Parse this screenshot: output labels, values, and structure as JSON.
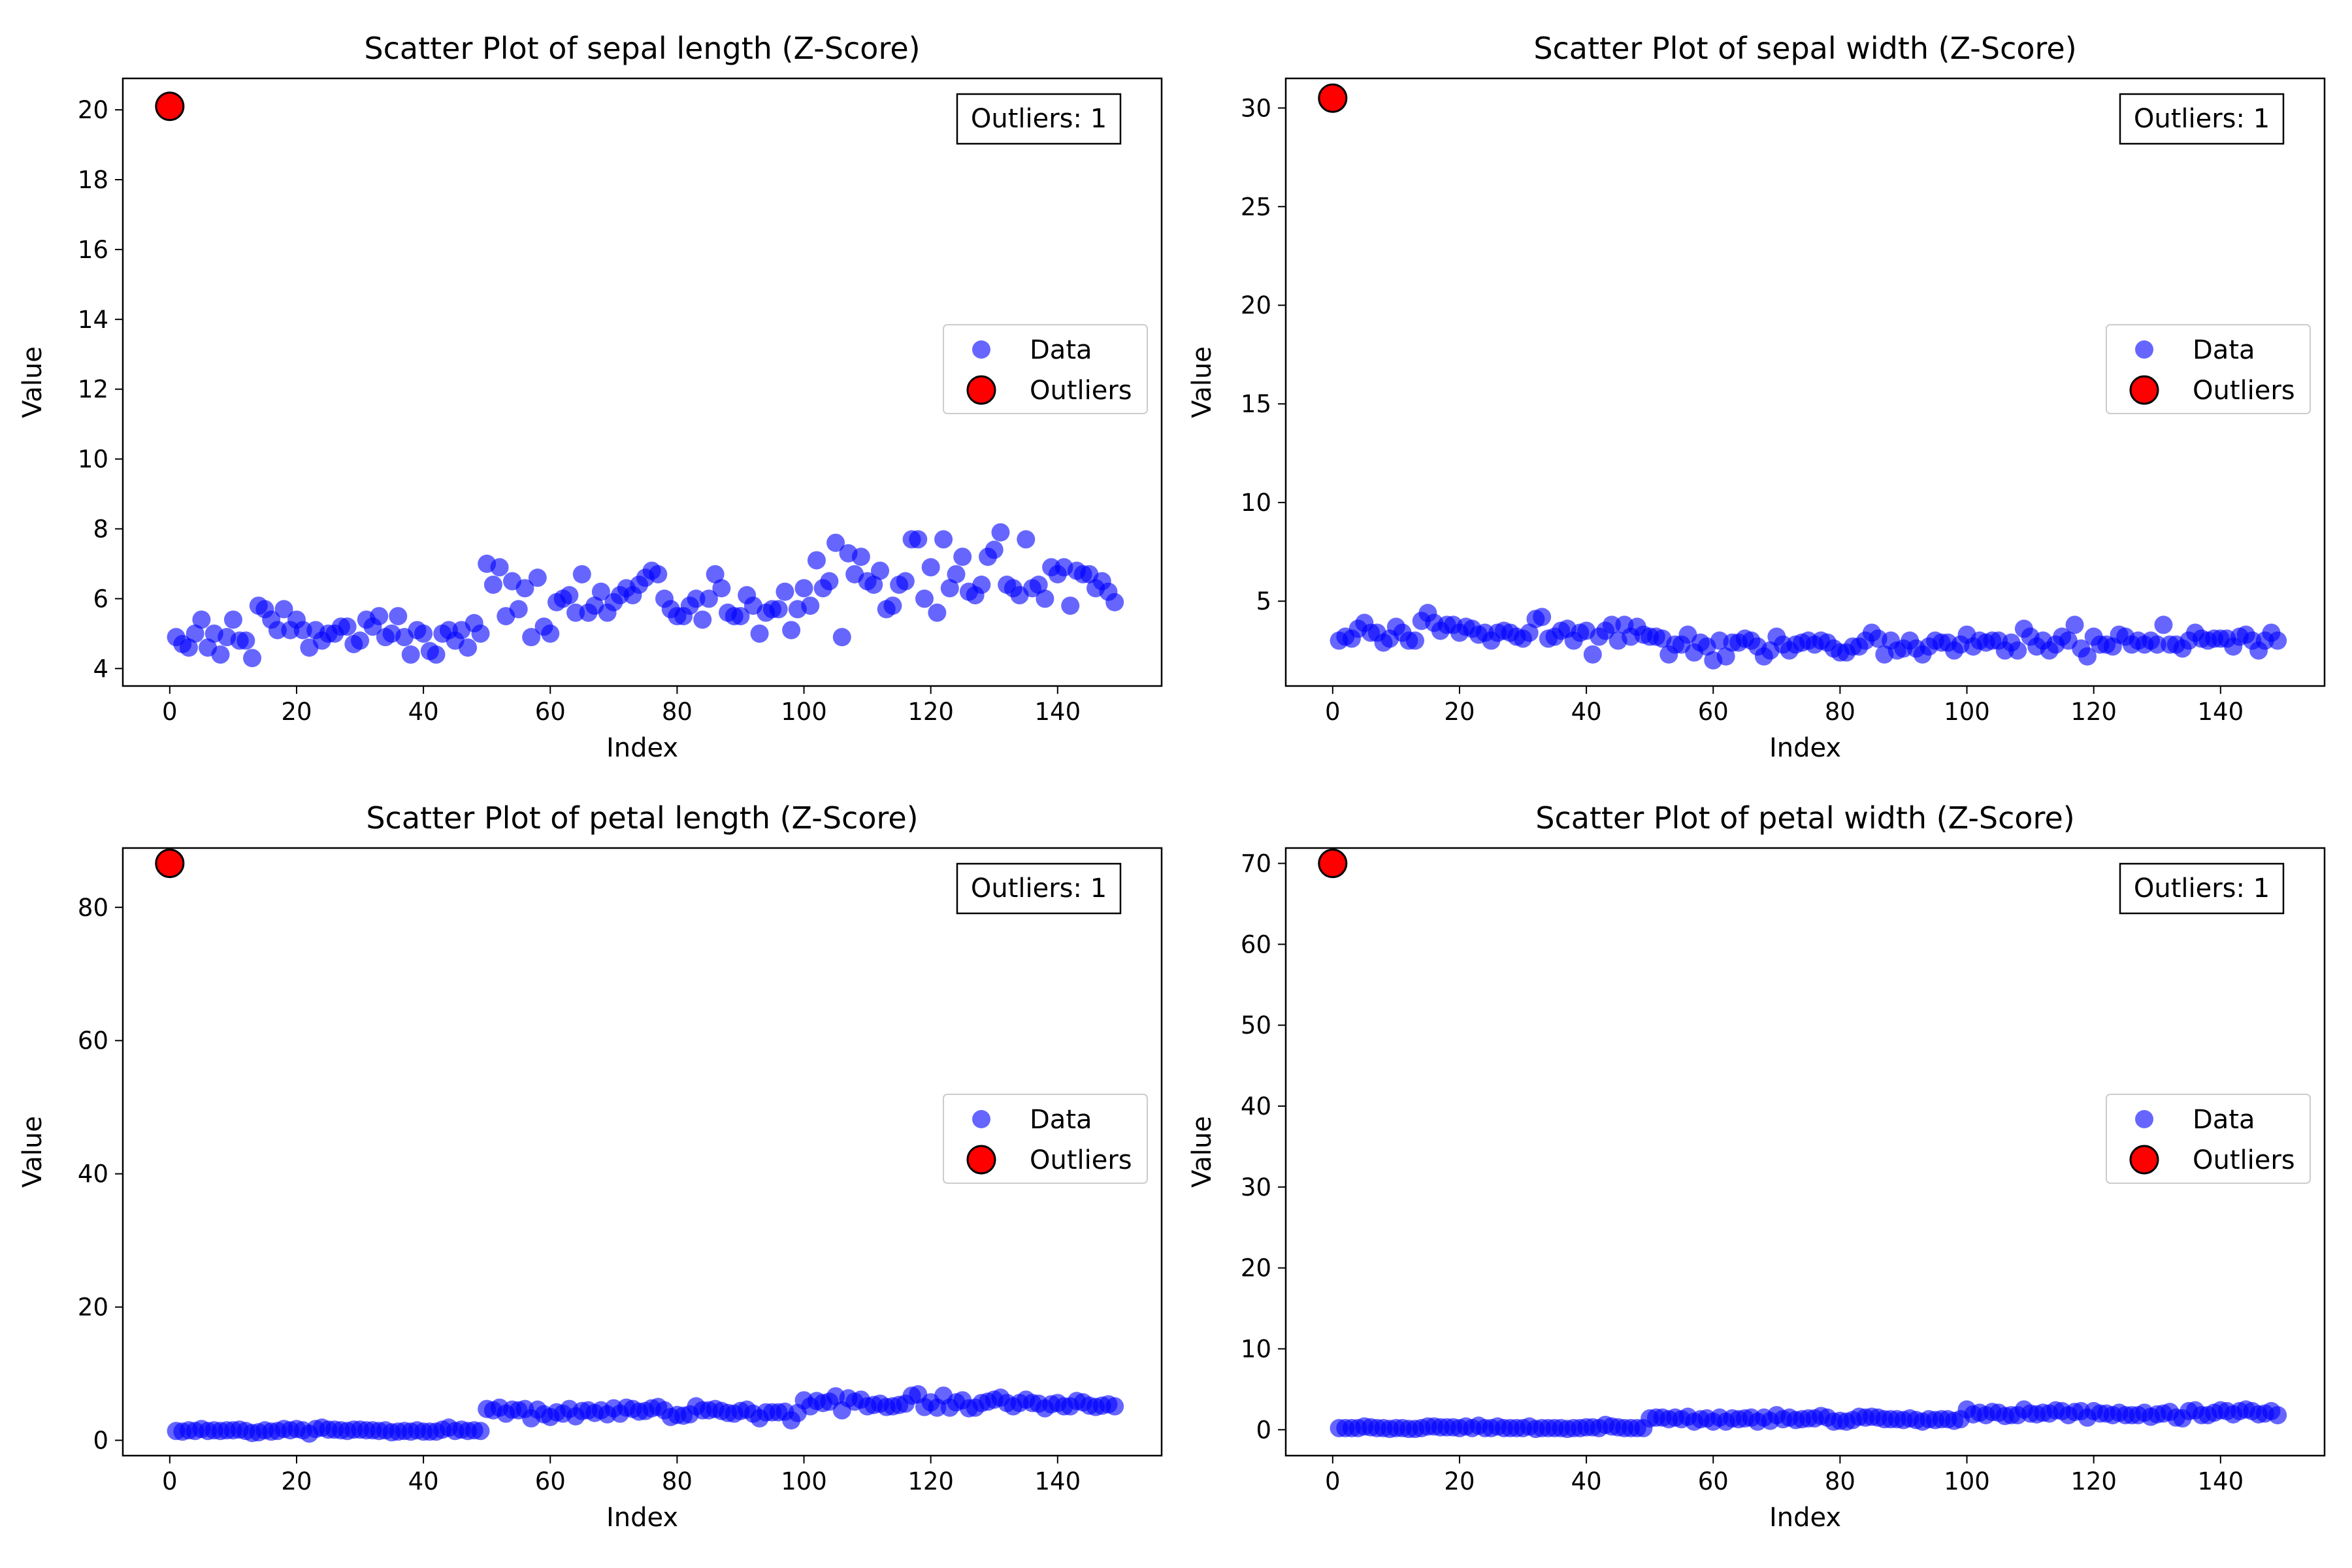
{
  "legend": {
    "data_label": "Data",
    "outlier_label": "Outliers"
  },
  "colors": {
    "data": "#0000ff",
    "outlier": "#ff0000"
  },
  "chart_data": [
    {
      "type": "scatter",
      "title": "Scatter Plot of sepal length (Z-Score)",
      "xlabel": "Index",
      "ylabel": "Value",
      "xlim": [
        -7.4,
        156.4
      ],
      "ylim": [
        3.5,
        20.9
      ],
      "xticks": [
        0,
        20,
        40,
        60,
        80,
        100,
        120,
        140
      ],
      "yticks": [
        4,
        6,
        8,
        10,
        12,
        14,
        16,
        18,
        20
      ],
      "legend_placement": "center-right",
      "outlier_box": "Outliers: 1",
      "series": [
        {
          "name": "Data",
          "x_start": 1,
          "values": [
            4.9,
            4.7,
            4.6,
            5.0,
            5.4,
            4.6,
            5.0,
            4.4,
            4.9,
            5.4,
            4.8,
            4.8,
            4.3,
            5.8,
            5.7,
            5.4,
            5.1,
            5.7,
            5.1,
            5.4,
            5.1,
            4.6,
            5.1,
            4.8,
            5.0,
            5.0,
            5.2,
            5.2,
            4.7,
            4.8,
            5.4,
            5.2,
            5.5,
            4.9,
            5.0,
            5.5,
            4.9,
            4.4,
            5.1,
            5.0,
            4.5,
            4.4,
            5.0,
            5.1,
            4.8,
            5.1,
            4.6,
            5.3,
            5.0,
            7.0,
            6.4,
            6.9,
            5.5,
            6.5,
            5.7,
            6.3,
            4.9,
            6.6,
            5.2,
            5.0,
            5.9,
            6.0,
            6.1,
            5.6,
            6.7,
            5.6,
            5.8,
            6.2,
            5.6,
            5.9,
            6.1,
            6.3,
            6.1,
            6.4,
            6.6,
            6.8,
            6.7,
            6.0,
            5.7,
            5.5,
            5.5,
            5.8,
            6.0,
            5.4,
            6.0,
            6.7,
            6.3,
            5.6,
            5.5,
            5.5,
            6.1,
            5.8,
            5.0,
            5.6,
            5.7,
            5.7,
            6.2,
            5.1,
            5.7,
            6.3,
            5.8,
            7.1,
            6.3,
            6.5,
            7.6,
            4.9,
            7.3,
            6.7,
            7.2,
            6.5,
            6.4,
            6.8,
            5.7,
            5.8,
            6.4,
            6.5,
            7.7,
            7.7,
            6.0,
            6.9,
            5.6,
            7.7,
            6.3,
            6.7,
            7.2,
            6.2,
            6.1,
            6.4,
            7.2,
            7.4,
            7.9,
            6.4,
            6.3,
            6.1,
            7.7,
            6.3,
            6.4,
            6.0,
            6.9,
            6.7,
            6.9,
            5.8,
            6.8,
            6.7,
            6.7,
            6.3,
            6.5,
            6.2,
            5.9
          ]
        },
        {
          "name": "Outliers",
          "x": [
            0
          ],
          "values": [
            20.1
          ]
        }
      ]
    },
    {
      "type": "scatter",
      "title": "Scatter Plot of sepal width (Z-Score)",
      "xlabel": "Index",
      "ylabel": "Value",
      "xlim": [
        -7.4,
        156.4
      ],
      "ylim": [
        0.7,
        31.5
      ],
      "xticks": [
        0,
        20,
        40,
        60,
        80,
        100,
        120,
        140
      ],
      "yticks": [
        5,
        10,
        15,
        20,
        25,
        30
      ],
      "legend_placement": "center-right",
      "outlier_box": "Outliers: 1",
      "series": [
        {
          "name": "Data",
          "x_start": 1,
          "values": [
            3.0,
            3.2,
            3.1,
            3.6,
            3.9,
            3.4,
            3.4,
            2.9,
            3.1,
            3.7,
            3.4,
            3.0,
            3.0,
            4.0,
            4.4,
            3.9,
            3.5,
            3.8,
            3.8,
            3.4,
            3.7,
            3.6,
            3.3,
            3.4,
            3.0,
            3.4,
            3.5,
            3.4,
            3.2,
            3.1,
            3.4,
            4.1,
            4.2,
            3.1,
            3.2,
            3.5,
            3.6,
            3.0,
            3.4,
            3.5,
            2.3,
            3.2,
            3.5,
            3.8,
            3.0,
            3.8,
            3.2,
            3.7,
            3.3,
            3.2,
            3.2,
            3.1,
            2.3,
            2.8,
            2.8,
            3.3,
            2.4,
            2.9,
            2.7,
            2.0,
            3.0,
            2.2,
            2.9,
            2.9,
            3.1,
            3.0,
            2.7,
            2.2,
            2.5,
            3.2,
            2.8,
            2.5,
            2.8,
            2.9,
            3.0,
            2.8,
            3.0,
            2.9,
            2.6,
            2.4,
            2.4,
            2.7,
            2.7,
            3.0,
            3.4,
            3.1,
            2.3,
            3.0,
            2.5,
            2.6,
            3.0,
            2.6,
            2.3,
            2.7,
            3.0,
            2.9,
            2.9,
            2.5,
            2.8,
            3.3,
            2.7,
            3.0,
            2.9,
            3.0,
            3.0,
            2.5,
            2.9,
            2.5,
            3.6,
            3.2,
            2.7,
            3.0,
            2.5,
            2.8,
            3.2,
            3.0,
            3.8,
            2.6,
            2.2,
            3.2,
            2.8,
            2.8,
            2.7,
            3.3,
            3.2,
            2.8,
            3.0,
            2.8,
            3.0,
            2.8,
            3.8,
            2.8,
            2.8,
            2.6,
            3.0,
            3.4,
            3.1,
            3.0,
            3.1,
            3.1,
            3.1,
            2.7,
            3.2,
            3.3,
            3.0,
            2.5,
            3.0,
            3.4,
            3.0
          ]
        },
        {
          "name": "Outliers",
          "x": [
            0
          ],
          "values": [
            30.5
          ]
        }
      ]
    },
    {
      "type": "scatter",
      "title": "Scatter Plot of petal length (Z-Score)",
      "xlabel": "Index",
      "ylabel": "Value",
      "xlim": [
        -7.4,
        156.4
      ],
      "ylim": [
        -2.3,
        88.9
      ],
      "xticks": [
        0,
        20,
        40,
        60,
        80,
        100,
        120,
        140
      ],
      "yticks": [
        0,
        20,
        40,
        60,
        80
      ],
      "legend_placement": "center-right",
      "outlier_box": "Outliers: 1",
      "series": [
        {
          "name": "Data",
          "x_start": 1,
          "values": [
            1.4,
            1.3,
            1.5,
            1.4,
            1.7,
            1.4,
            1.5,
            1.4,
            1.5,
            1.5,
            1.6,
            1.4,
            1.1,
            1.2,
            1.5,
            1.3,
            1.4,
            1.7,
            1.5,
            1.7,
            1.5,
            1.0,
            1.7,
            1.9,
            1.6,
            1.6,
            1.5,
            1.4,
            1.6,
            1.6,
            1.5,
            1.5,
            1.4,
            1.5,
            1.2,
            1.3,
            1.4,
            1.3,
            1.5,
            1.3,
            1.3,
            1.3,
            1.6,
            1.9,
            1.4,
            1.6,
            1.4,
            1.5,
            1.4,
            4.7,
            4.5,
            4.9,
            4.0,
            4.6,
            4.5,
            4.7,
            3.3,
            4.6,
            3.9,
            3.5,
            4.2,
            4.0,
            4.7,
            3.6,
            4.4,
            4.5,
            4.1,
            4.5,
            3.9,
            4.8,
            4.0,
            4.9,
            4.7,
            4.3,
            4.4,
            4.8,
            5.0,
            4.5,
            3.5,
            3.8,
            3.7,
            3.9,
            5.1,
            4.5,
            4.5,
            4.7,
            4.4,
            4.1,
            4.0,
            4.4,
            4.6,
            4.0,
            3.3,
            4.2,
            4.2,
            4.2,
            4.3,
            3.0,
            4.1,
            6.0,
            5.1,
            5.9,
            5.6,
            5.8,
            6.6,
            4.5,
            6.3,
            5.8,
            6.1,
            5.1,
            5.3,
            5.5,
            5.0,
            5.1,
            5.3,
            5.5,
            6.7,
            6.9,
            5.0,
            5.7,
            4.9,
            6.7,
            4.9,
            5.7,
            6.0,
            4.8,
            4.9,
            5.6,
            5.8,
            6.1,
            6.4,
            5.6,
            5.1,
            5.6,
            6.1,
            5.6,
            5.5,
            4.8,
            5.4,
            5.6,
            5.1,
            5.1,
            5.9,
            5.7,
            5.2,
            5.0,
            5.2,
            5.4,
            5.1
          ]
        },
        {
          "name": "Outliers",
          "x": [
            0
          ],
          "values": [
            86.6
          ]
        }
      ]
    },
    {
      "type": "scatter",
      "title": "Scatter Plot of petal width (Z-Score)",
      "xlabel": "Index",
      "ylabel": "Value",
      "xlim": [
        -7.4,
        156.4
      ],
      "ylim": [
        -3.2,
        71.9
      ],
      "xticks": [
        0,
        20,
        40,
        60,
        80,
        100,
        120,
        140
      ],
      "yticks": [
        0,
        10,
        20,
        30,
        40,
        50,
        60,
        70
      ],
      "legend_placement": "center-right",
      "outlier_box": "Outliers: 1",
      "series": [
        {
          "name": "Data",
          "x_start": 1,
          "values": [
            0.2,
            0.2,
            0.2,
            0.2,
            0.4,
            0.3,
            0.2,
            0.2,
            0.1,
            0.2,
            0.2,
            0.1,
            0.1,
            0.2,
            0.4,
            0.4,
            0.3,
            0.3,
            0.3,
            0.2,
            0.4,
            0.2,
            0.5,
            0.2,
            0.2,
            0.4,
            0.2,
            0.2,
            0.2,
            0.2,
            0.4,
            0.1,
            0.2,
            0.2,
            0.2,
            0.2,
            0.1,
            0.2,
            0.2,
            0.3,
            0.3,
            0.2,
            0.6,
            0.4,
            0.3,
            0.2,
            0.2,
            0.2,
            0.2,
            1.4,
            1.5,
            1.5,
            1.3,
            1.5,
            1.3,
            1.6,
            1.0,
            1.3,
            1.4,
            1.0,
            1.5,
            1.0,
            1.4,
            1.3,
            1.4,
            1.5,
            1.0,
            1.5,
            1.1,
            1.8,
            1.3,
            1.5,
            1.2,
            1.3,
            1.4,
            1.4,
            1.7,
            1.5,
            1.0,
            1.1,
            1.0,
            1.2,
            1.6,
            1.5,
            1.6,
            1.5,
            1.3,
            1.3,
            1.3,
            1.2,
            1.4,
            1.2,
            1.0,
            1.3,
            1.2,
            1.3,
            1.3,
            1.1,
            1.3,
            2.5,
            1.9,
            2.1,
            1.8,
            2.2,
            2.1,
            1.7,
            1.8,
            1.8,
            2.5,
            2.0,
            1.9,
            2.1,
            2.0,
            2.4,
            2.3,
            1.8,
            2.2,
            2.3,
            1.5,
            2.3,
            2.0,
            2.0,
            1.8,
            2.1,
            1.8,
            1.8,
            1.8,
            2.1,
            1.6,
            1.9,
            2.0,
            2.2,
            1.5,
            1.4,
            2.3,
            2.4,
            1.8,
            1.8,
            2.1,
            2.4,
            2.3,
            1.9,
            2.3,
            2.5,
            2.3,
            1.9,
            2.0,
            2.3,
            1.8
          ]
        },
        {
          "name": "Outliers",
          "x": [
            0
          ],
          "values": [
            70.0
          ]
        }
      ]
    }
  ]
}
